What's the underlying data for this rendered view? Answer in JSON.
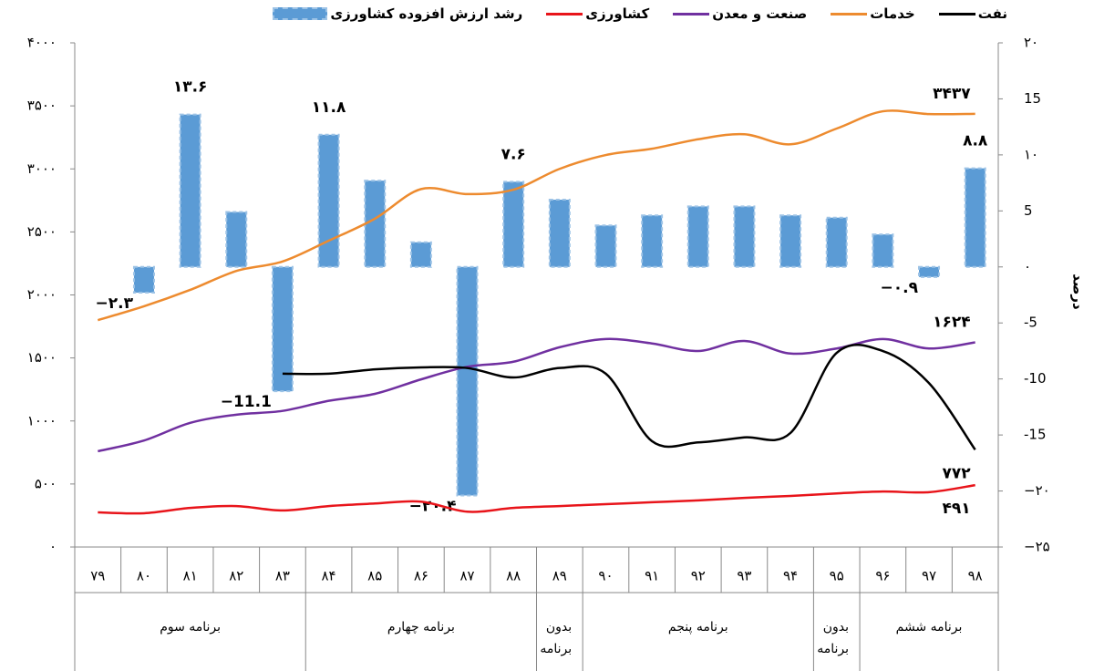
{
  "chart_data": {
    "type": "combo",
    "categories": [
      "۷۹",
      "۸۰",
      "۸۱",
      "۸۲",
      "۸۳",
      "۸۴",
      "۸۵",
      "۸۶",
      "۸۷",
      "۸۸",
      "۸۹",
      "۹۰",
      "۹۱",
      "۹۲",
      "۹۳",
      "۹۴",
      "۹۵",
      "۹۶",
      "۹۷",
      "۹۸"
    ],
    "groups": [
      {
        "label": "برنامه سوم",
        "categories": [
          "۷۹",
          "۸۰",
          "۸۱",
          "۸۲",
          "۸۳"
        ]
      },
      {
        "label": "برنامه چهارم",
        "categories": [
          "۸۴",
          "۸۵",
          "۸۶",
          "۸۷",
          "۸۸"
        ]
      },
      {
        "label": "بدون برنامه",
        "categories": [
          "۸۹"
        ]
      },
      {
        "label": "برنامه پنجم",
        "categories": [
          "۹۰",
          "۹۱",
          "۹۲",
          "۹۳",
          "۹۴"
        ]
      },
      {
        "label": "بدون برنامه",
        "categories": [
          "۹۵"
        ]
      },
      {
        "label": "برنامه ششم",
        "categories": [
          "۹۶",
          "۹۷",
          "۹۸"
        ]
      }
    ],
    "y2_label": "درصد",
    "ylim": [
      0,
      4000
    ],
    "yticks": [
      {
        "value": 0,
        "label": "۰"
      },
      {
        "value": 500,
        "label": "۵۰۰"
      },
      {
        "value": 1000,
        "label": "۱۰۰۰"
      },
      {
        "value": 1500,
        "label": "۱۵۰۰"
      },
      {
        "value": 2000,
        "label": "۲۰۰۰"
      },
      {
        "value": 2500,
        "label": "۲۵۰۰"
      },
      {
        "value": 3000,
        "label": "۳۰۰۰"
      },
      {
        "value": 3500,
        "label": "۳۵۰۰"
      },
      {
        "value": 4000,
        "label": "۴۰۰۰"
      }
    ],
    "y2lim": [
      -25,
      20
    ],
    "y2ticks": [
      {
        "value": -25,
        "label": "−۲۵"
      },
      {
        "value": -20,
        "label": "−۲۰"
      },
      -15,
      -10,
      -5,
      {
        "value": 0,
        "label": "۰"
      },
      5,
      {
        "value": 10,
        "label": "۱۰"
      },
      15,
      {
        "value": 20,
        "label": "۲۰"
      }
    ],
    "legend": "top",
    "series": [
      {
        "name": "رشد ارزش افزوده کشاورزی",
        "type": "bar",
        "axis": "y2",
        "color": "#5b9bd5",
        "values": [
          null,
          -2.3,
          13.6,
          4.9,
          -11.1,
          11.8,
          7.7,
          2.2,
          -20.4,
          7.6,
          6.0,
          3.7,
          4.6,
          5.4,
          5.4,
          4.6,
          4.4,
          2.9,
          -0.9,
          8.8
        ],
        "value_labels": [
          null,
          "−۲.۳",
          "۱۳.۶",
          null,
          "−11.1",
          "۱۱.۸",
          null,
          null,
          "−۲۰.۴",
          "۷.۶",
          null,
          null,
          null,
          null,
          null,
          null,
          null,
          null,
          "−۰.۹",
          "۸.۸"
        ]
      },
      {
        "name": "کشاورزی",
        "type": "line",
        "color": "#e8141a",
        "values": [
          275,
          268,
          310,
          325,
          290,
          325,
          345,
          360,
          280,
          310,
          325,
          340,
          355,
          370,
          390,
          405,
          425,
          440,
          435,
          491
        ],
        "value_labels": [
          null,
          null,
          null,
          null,
          null,
          null,
          null,
          null,
          null,
          null,
          null,
          null,
          null,
          null,
          null,
          null,
          null,
          null,
          null,
          "۴۹۱"
        ]
      },
      {
        "name": "صنعت و معدن",
        "type": "line",
        "color": "#7030a0",
        "values": [
          760,
          845,
          985,
          1050,
          1080,
          1160,
          1215,
          1330,
          1430,
          1470,
          1585,
          1650,
          1615,
          1555,
          1635,
          1535,
          1575,
          1650,
          1575,
          1624
        ],
        "value_labels": [
          null,
          null,
          null,
          null,
          null,
          null,
          null,
          null,
          null,
          null,
          null,
          null,
          null,
          null,
          null,
          null,
          null,
          null,
          null,
          "۱۶۲۴"
        ]
      },
      {
        "name": "خدمات",
        "type": "line",
        "color": "#ed8b2f",
        "values": [
          1800,
          1910,
          2040,
          2190,
          2265,
          2430,
          2605,
          2840,
          2800,
          2835,
          3000,
          3110,
          3160,
          3235,
          3275,
          3195,
          3320,
          3457,
          3435,
          3437
        ],
        "value_labels": [
          null,
          null,
          null,
          null,
          null,
          null,
          null,
          null,
          null,
          null,
          null,
          null,
          null,
          null,
          null,
          null,
          null,
          null,
          null,
          "۳۴۳۷"
        ]
      },
      {
        "name": "نفت",
        "type": "line",
        "color": "#000000",
        "values": [
          null,
          null,
          null,
          null,
          1375,
          1375,
          1410,
          1425,
          1420,
          1345,
          1420,
          1375,
          840,
          830,
          870,
          905,
          1540,
          1555,
          1300,
          772
        ],
        "value_labels": [
          null,
          null,
          null,
          null,
          null,
          null,
          null,
          null,
          null,
          null,
          null,
          null,
          null,
          null,
          null,
          null,
          null,
          null,
          null,
          "۷۷۲"
        ]
      }
    ]
  }
}
